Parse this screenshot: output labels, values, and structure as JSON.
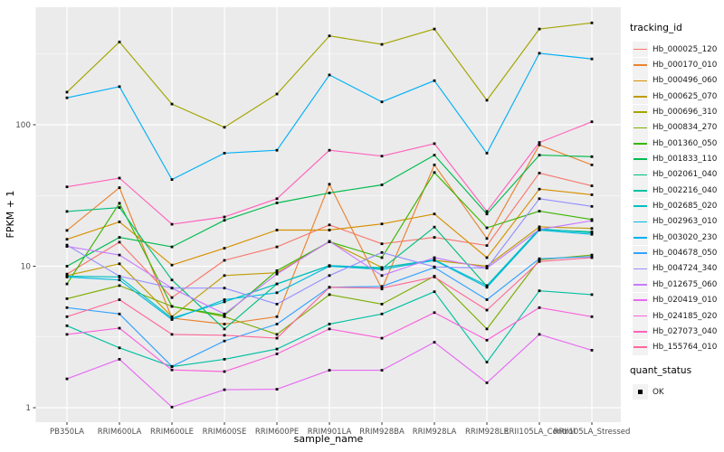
{
  "figure": {
    "background": "#FFFFFF",
    "panel_background": "#EBEBEB",
    "gridline_color": "#FFFFFF",
    "tick_color": "#333333",
    "tick_label_color": "#4D4D4D",
    "point_color": "#000000",
    "legend_key_background": "#F2F2F2"
  },
  "legend": {
    "color_title": "tracking_id",
    "shape_title": "quant_status",
    "shape_item_label": "OK"
  },
  "chart_data": {
    "type": "line",
    "title": "",
    "xlabel": "sample_name",
    "ylabel": "FPKM + 1",
    "y_scale": "log10",
    "y_ticks": [
      1,
      10,
      100
    ],
    "ylim": [
      0.79,
      680
    ],
    "grid": "major-and-minor-white-on-grey",
    "legend_position": "right",
    "point_shape": "filled-black-square",
    "categories": [
      "PB350LA",
      "RRIM600LA",
      "RRIM600LE",
      "RRIM600SE",
      "RRIM600PE",
      "RRIM901LA",
      "RRIM928BA",
      "RRIM928LA",
      "RRIM928LE",
      "RRII105LA_Control",
      "RRII105LA_Stressed"
    ],
    "series": [
      {
        "name": "Hb_000025_120",
        "color": "#F8766D",
        "values": [
          8.8,
          14.8,
          6.0,
          11.0,
          13.7,
          19.6,
          14.4,
          16.0,
          14.0,
          45.6,
          37.0
        ]
      },
      {
        "name": "Hb_000170_010",
        "color": "#EA8331",
        "values": [
          17.9,
          35.9,
          4.3,
          3.9,
          4.4,
          38.0,
          6.9,
          52.0,
          15.7,
          72.0,
          52.0
        ]
      },
      {
        "name": "Hb_000496_060",
        "color": "#D89000",
        "values": [
          15.5,
          20.6,
          10.2,
          13.4,
          18.0,
          18.0,
          19.9,
          23.4,
          11.5,
          35.1,
          32.0
        ]
      },
      {
        "name": "Hb_000625_070",
        "color": "#C09B00",
        "values": [
          8.6,
          10.4,
          4.4,
          8.6,
          9.0,
          14.9,
          9.8,
          11.0,
          10.0,
          19.0,
          18.5
        ]
      },
      {
        "name": "Hb_000696_310",
        "color": "#A3A500",
        "values": [
          170,
          385,
          140,
          96,
          165,
          425,
          370,
          475,
          149,
          475,
          525
        ]
      },
      {
        "name": "Hb_000834_270",
        "color": "#7CAE00",
        "values": [
          5.9,
          7.3,
          5.2,
          4.4,
          3.3,
          6.3,
          5.4,
          8.5,
          3.6,
          11.1,
          12.0
        ]
      },
      {
        "name": "Hb_001360_050",
        "color": "#39B600",
        "values": [
          7.5,
          27.9,
          5.2,
          4.5,
          9.3,
          14.9,
          11.5,
          46.0,
          18.7,
          24.5,
          21.4
        ]
      },
      {
        "name": "Hb_001833_110",
        "color": "#00BB4E",
        "values": [
          10.0,
          16.0,
          13.7,
          21.1,
          28.0,
          33.0,
          37.6,
          61.0,
          23.4,
          61.0,
          59.5
        ]
      },
      {
        "name": "Hb_002061_040",
        "color": "#00BF7D",
        "values": [
          24.4,
          26.0,
          8.0,
          3.6,
          7.5,
          10.1,
          9.6,
          18.9,
          7.2,
          18.2,
          17.5
        ]
      },
      {
        "name": "Hb_002216_040",
        "color": "#00C1A3",
        "values": [
          3.8,
          2.65,
          1.95,
          2.2,
          2.6,
          3.9,
          4.6,
          6.6,
          2.1,
          6.7,
          6.3
        ]
      },
      {
        "name": "Hb_002685_020",
        "color": "#00BFC4",
        "values": [
          8.5,
          8.4,
          4.3,
          5.6,
          7.5,
          10.1,
          9.8,
          11.1,
          7.3,
          18.4,
          17.2
        ]
      },
      {
        "name": "Hb_002963_010",
        "color": "#00BAE0",
        "values": [
          8.4,
          8.0,
          4.2,
          5.8,
          6.5,
          10.0,
          9.5,
          11.0,
          7.1,
          18.0,
          16.8
        ]
      },
      {
        "name": "Hb_003020_230",
        "color": "#00B0F6",
        "values": [
          155,
          186,
          41,
          63,
          66,
          225,
          145,
          205,
          63,
          320,
          292
        ]
      },
      {
        "name": "Hb_004678_050",
        "color": "#35A2FF",
        "values": [
          5.1,
          4.6,
          1.96,
          2.96,
          3.9,
          7.1,
          7.2,
          9.8,
          5.8,
          11.3,
          11.7
        ]
      },
      {
        "name": "Hb_004724_340",
        "color": "#9590FF",
        "values": [
          14.1,
          8.5,
          7.0,
          7.0,
          5.4,
          8.6,
          12.5,
          9.9,
          9.7,
          30.0,
          26.5
        ]
      },
      {
        "name": "Hb_012675_060",
        "color": "#C77CFF",
        "values": [
          13.8,
          12.0,
          7.0,
          4.6,
          8.8,
          15.0,
          8.6,
          11.5,
          9.7,
          18.2,
          21.0
        ]
      },
      {
        "name": "Hb_020419_010",
        "color": "#E76BF3",
        "values": [
          1.6,
          2.2,
          1.01,
          1.34,
          1.35,
          1.84,
          1.84,
          2.9,
          1.5,
          3.3,
          2.55
        ]
      },
      {
        "name": "Hb_024185_020",
        "color": "#FA62DB",
        "values": [
          3.3,
          3.65,
          1.85,
          1.8,
          2.4,
          3.6,
          3.1,
          4.7,
          3.0,
          5.1,
          4.4
        ]
      },
      {
        "name": "Hb_027073_040",
        "color": "#FF62BC",
        "values": [
          36.4,
          42.0,
          19.8,
          22.3,
          30.0,
          66.0,
          60.0,
          73.5,
          24.4,
          75.0,
          105.0
        ]
      },
      {
        "name": "Hb_155764_010",
        "color": "#FF6A98",
        "values": [
          4.4,
          5.8,
          3.3,
          3.25,
          3.1,
          7.1,
          7.0,
          8.4,
          4.9,
          10.8,
          11.5
        ]
      }
    ]
  }
}
